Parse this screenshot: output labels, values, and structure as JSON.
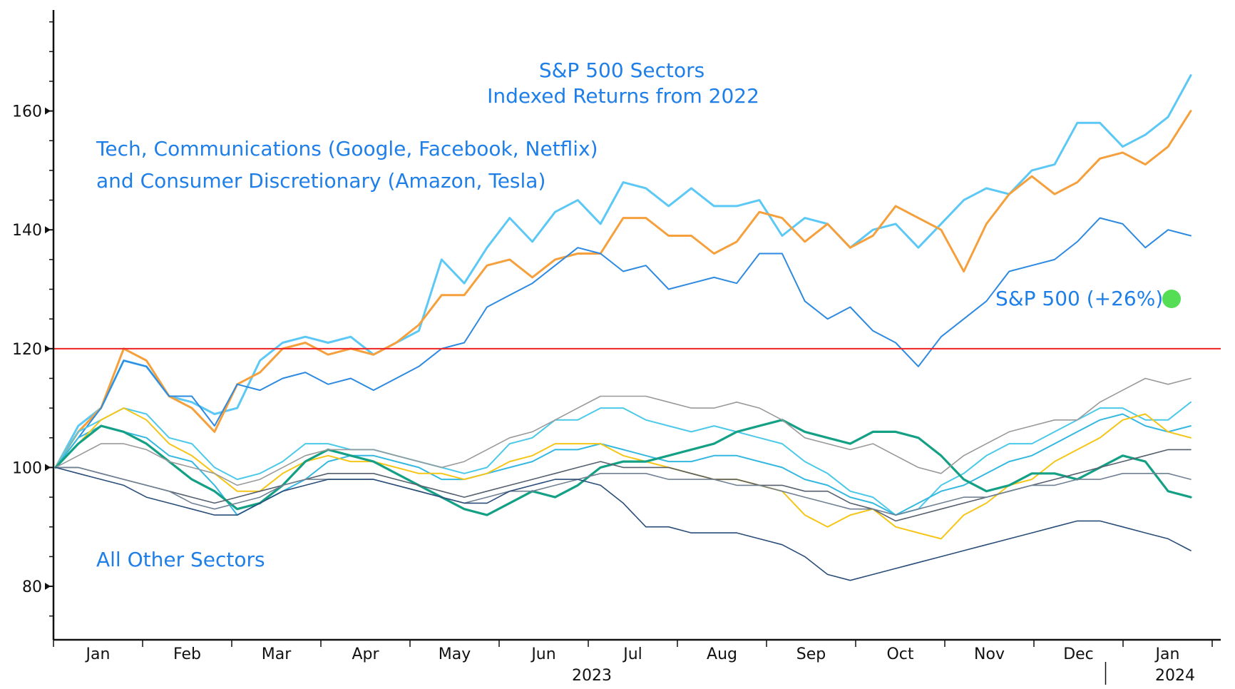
{
  "chart_data": {
    "type": "line",
    "title_lines": [
      "S&P 500 Sectors",
      "Indexed Returns from 2022"
    ],
    "xlabel": "",
    "ylabel": "",
    "ylim": [
      71,
      177
    ],
    "yticks": [
      80,
      100,
      120,
      140,
      160
    ],
    "x_month_labels": [
      "Jan",
      "Feb",
      "Mar",
      "Apr",
      "May",
      "Jun",
      "Jul",
      "Aug",
      "Sep",
      "Oct",
      "Nov",
      "Dec",
      "Jan"
    ],
    "x_year_labels": [
      "2023",
      "2024"
    ],
    "grid": false,
    "reference_line": {
      "value": 120,
      "color": "#ee2222"
    },
    "annotations": {
      "group_tech_line1": "Tech, Communications (Google, Facebook, Netflix)",
      "group_tech_line2": "and Consumer Discretionary (Amazon, Tesla)",
      "sp500_label": "S&P 500 (+26%)",
      "group_other": "All Other Sectors"
    },
    "marker_color": "#55dd55",
    "series": [
      {
        "color": "#5bc8f5",
        "width": 3.0,
        "values": [
          100,
          107,
          110,
          118,
          117,
          112,
          111,
          109,
          110,
          118,
          121,
          122,
          121,
          122,
          119,
          121,
          123,
          135,
          131,
          137,
          142,
          138,
          143,
          145,
          141,
          148,
          147,
          144,
          147,
          144,
          144,
          145,
          139,
          142,
          141,
          137,
          140,
          141,
          137,
          141,
          145,
          147,
          146,
          150,
          151,
          158,
          158,
          154,
          156,
          159,
          166
        ]
      },
      {
        "color": "#f5a03c",
        "width": 3.0,
        "values": [
          100,
          106,
          110,
          120,
          118,
          112,
          110,
          106,
          114,
          116,
          120,
          121,
          119,
          120,
          119,
          121,
          124,
          129,
          129,
          134,
          135,
          132,
          135,
          136,
          136,
          142,
          142,
          139,
          139,
          136,
          138,
          143,
          142,
          138,
          141,
          137,
          139,
          144,
          142,
          140,
          133,
          141,
          146,
          149,
          146,
          148,
          152,
          153,
          151,
          154,
          160
        ]
      },
      {
        "color": "#2e8ae0",
        "width": 2.0,
        "values": [
          100,
          105,
          110,
          118,
          117,
          112,
          112,
          107,
          114,
          113,
          115,
          116,
          114,
          115,
          113,
          115,
          117,
          120,
          121,
          127,
          129,
          131,
          134,
          137,
          136,
          133,
          134,
          130,
          131,
          132,
          131,
          136,
          136,
          128,
          125,
          127,
          123,
          121,
          117,
          122,
          125,
          128,
          133,
          134,
          135,
          138,
          142,
          141,
          137,
          140,
          139
        ]
      },
      {
        "color": "#4cc9e8",
        "width": 2.0,
        "values": [
          100,
          106,
          108,
          110,
          109,
          105,
          104,
          100,
          98,
          99,
          101,
          104,
          104,
          103,
          103,
          102,
          101,
          100,
          99,
          100,
          104,
          105,
          108,
          108,
          110,
          110,
          108,
          107,
          106,
          107,
          106,
          105,
          104,
          101,
          99,
          96,
          95,
          92,
          93,
          97,
          99,
          102,
          104,
          104,
          106,
          108,
          110,
          110,
          108,
          108,
          111
        ]
      },
      {
        "color": "#35b8e0",
        "width": 2.0,
        "values": [
          100,
          105,
          107,
          106,
          105,
          102,
          101,
          97,
          92,
          94,
          96,
          98,
          101,
          102,
          102,
          101,
          100,
          98,
          98,
          99,
          100,
          101,
          103,
          103,
          104,
          103,
          102,
          101,
          101,
          102,
          102,
          101,
          100,
          98,
          97,
          95,
          94,
          92,
          94,
          96,
          97,
          99,
          101,
          102,
          104,
          106,
          108,
          109,
          107,
          106,
          107
        ]
      },
      {
        "color": "#f5c518",
        "width": 2.0,
        "values": [
          100,
          104,
          108,
          110,
          108,
          104,
          102,
          99,
          96,
          96,
          99,
          101,
          102,
          101,
          101,
          100,
          99,
          99,
          98,
          99,
          101,
          102,
          104,
          104,
          104,
          102,
          101,
          100,
          99,
          98,
          98,
          97,
          96,
          92,
          90,
          92,
          93,
          90,
          89,
          88,
          92,
          94,
          97,
          98,
          101,
          103,
          105,
          108,
          109,
          106,
          105
        ]
      },
      {
        "color": "#14a085",
        "width": 3.2,
        "values": [
          100,
          104,
          107,
          106,
          104,
          101,
          98,
          96,
          93,
          94,
          97,
          101,
          103,
          102,
          101,
          99,
          97,
          95,
          93,
          92,
          94,
          96,
          95,
          97,
          100,
          101,
          101,
          102,
          103,
          104,
          106,
          107,
          108,
          106,
          105,
          104,
          106,
          106,
          105,
          102,
          98,
          96,
          97,
          99,
          99,
          98,
          100,
          102,
          101,
          96,
          95
        ]
      },
      {
        "color": "#999999",
        "width": 1.6,
        "values": [
          100,
          102,
          104,
          104,
          103,
          101,
          100,
          99,
          97,
          98,
          100,
          102,
          103,
          103,
          103,
          102,
          101,
          100,
          101,
          103,
          105,
          106,
          108,
          110,
          112,
          112,
          112,
          111,
          110,
          110,
          111,
          110,
          108,
          105,
          104,
          103,
          104,
          102,
          100,
          99,
          102,
          104,
          106,
          107,
          108,
          108,
          111,
          113,
          115,
          114,
          115
        ]
      },
      {
        "color": "#555f6e",
        "width": 1.6,
        "values": [
          100,
          100,
          99,
          98,
          97,
          96,
          95,
          94,
          95,
          96,
          97,
          98,
          99,
          99,
          99,
          98,
          97,
          96,
          95,
          96,
          97,
          98,
          99,
          100,
          101,
          100,
          100,
          100,
          99,
          98,
          98,
          97,
          97,
          96,
          96,
          94,
          93,
          91,
          92,
          93,
          94,
          95,
          96,
          97,
          98,
          99,
          100,
          101,
          102,
          103,
          103
        ]
      },
      {
        "color": "#708093",
        "width": 1.6,
        "values": [
          100,
          100,
          99,
          98,
          97,
          96,
          94,
          93,
          94,
          95,
          97,
          98,
          98,
          98,
          98,
          97,
          96,
          95,
          94,
          95,
          96,
          96,
          97,
          98,
          99,
          99,
          99,
          98,
          98,
          98,
          97,
          97,
          96,
          95,
          94,
          93,
          93,
          92,
          93,
          94,
          95,
          95,
          96,
          97,
          97,
          98,
          98,
          99,
          99,
          99,
          98
        ]
      },
      {
        "color": "#2a4d78",
        "width": 1.6,
        "values": [
          100,
          99,
          98,
          97,
          95,
          94,
          93,
          92,
          92,
          94,
          96,
          97,
          98,
          98,
          98,
          97,
          96,
          95,
          94,
          94,
          96,
          97,
          98,
          98,
          97,
          94,
          90,
          90,
          89,
          89,
          89,
          88,
          87,
          85,
          82,
          81,
          82,
          83,
          84,
          85,
          86,
          87,
          88,
          89,
          90,
          91,
          91,
          90,
          89,
          88,
          86
        ]
      }
    ]
  }
}
